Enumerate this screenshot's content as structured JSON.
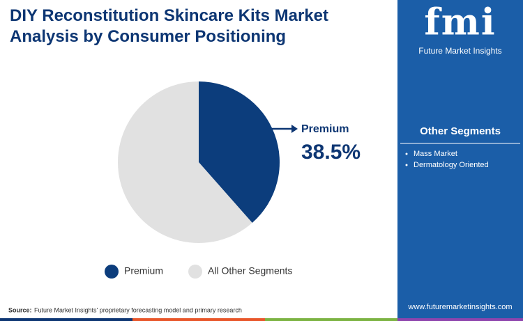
{
  "chart_data": {
    "type": "pie",
    "title": "DIY Reconstitution Skincare Kits Market Analysis by Consumer Positioning",
    "categories": [
      "Premium",
      "All Other Segments"
    ],
    "values": [
      38.5,
      61.5
    ],
    "value_labels": [
      "38.5%",
      null
    ],
    "colors": [
      "#0c3d7c",
      "#e1e1e1"
    ],
    "legend": "bottom"
  },
  "logo": {
    "mark": "fmi",
    "name": "Future Market Insights"
  },
  "panel": {
    "heading": "Other Segments",
    "items": [
      "Mass Market",
      "Dermatology Oriented"
    ]
  },
  "source": {
    "label": "Source:",
    "text": "Future Market Insights' proprietary forecasting model and primary research"
  },
  "website": "www.futuremarketinsights.com"
}
